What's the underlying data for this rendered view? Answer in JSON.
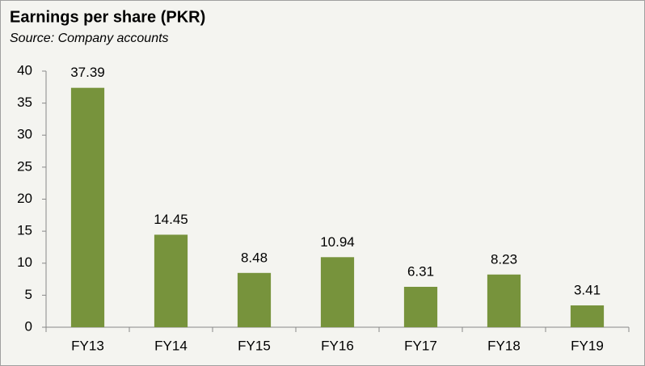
{
  "chart_data": {
    "type": "bar",
    "title": "Earnings per share (PKR)",
    "subtitle": "Source: Company accounts",
    "categories": [
      "FY13",
      "FY14",
      "FY15",
      "FY16",
      "FY17",
      "FY18",
      "FY19"
    ],
    "values": [
      37.39,
      14.45,
      8.48,
      10.94,
      6.31,
      8.23,
      3.41
    ],
    "color": "#77933c",
    "ylim": [
      0,
      40
    ],
    "yticks": [
      0,
      5,
      10,
      15,
      20,
      25,
      30,
      35,
      40
    ],
    "grid": false,
    "data_labels": true
  }
}
